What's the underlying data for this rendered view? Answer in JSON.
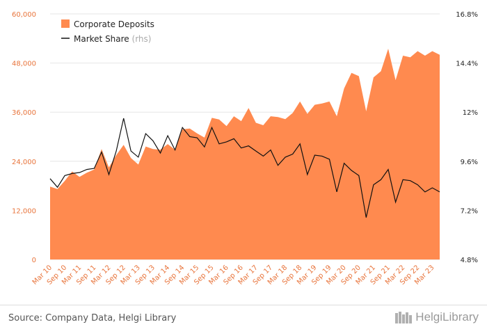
{
  "chart_data": {
    "type": "area+line",
    "categories": [
      "Mar 10",
      "",
      "Sep 10",
      "",
      "Mar 11",
      "",
      "Sep 11",
      "",
      "Mar 12",
      "",
      "Sep 12",
      "",
      "Mar 13",
      "",
      "Sep 13",
      "",
      "Mar 14",
      "",
      "Sep 14",
      "",
      "Mar 15",
      "",
      "Sep 15",
      "",
      "Mar 16",
      "",
      "Sep 16",
      "",
      "Mar 17",
      "",
      "Sep 17",
      "",
      "Mar 18",
      "",
      "Sep 18",
      "",
      "Mar 19",
      "",
      "Sep 19",
      "",
      "Mar 20",
      "",
      "Sep 20",
      "",
      "Mar 21",
      "",
      "Sep 21",
      "",
      "Mar 22",
      "",
      "Sep 22",
      "",
      "Mar 23",
      ""
    ],
    "series": [
      {
        "name": "Corporate Deposits",
        "axis": "left",
        "values": [
          17800,
          17200,
          19200,
          21500,
          20200,
          21200,
          22000,
          27000,
          22500,
          25500,
          28000,
          24800,
          23200,
          27600,
          27000,
          26800,
          28200,
          26800,
          31800,
          32000,
          30800,
          29800,
          34600,
          34200,
          32600,
          35000,
          33800,
          37000,
          33400,
          32800,
          35000,
          34800,
          34300,
          35800,
          38600,
          35600,
          37800,
          38100,
          38600,
          35000,
          41800,
          45600,
          44800,
          36200,
          44500,
          46000,
          51500,
          43800,
          49800,
          49400,
          50900,
          49800,
          50900,
          50000
        ]
      },
      {
        "name": "Market Share",
        "axis": "right",
        "values": [
          8.75,
          8.33,
          8.9,
          9.0,
          9.05,
          9.2,
          9.25,
          10.05,
          8.95,
          10.1,
          11.7,
          10.1,
          9.8,
          10.95,
          10.6,
          10.0,
          10.85,
          10.15,
          11.25,
          10.8,
          10.75,
          10.3,
          11.25,
          10.45,
          10.55,
          10.7,
          10.25,
          10.35,
          10.1,
          9.85,
          10.15,
          9.4,
          9.8,
          9.95,
          10.45,
          8.95,
          9.9,
          9.85,
          9.7,
          8.1,
          9.5,
          9.15,
          8.9,
          6.85,
          8.45,
          8.7,
          9.2,
          7.6,
          8.7,
          8.65,
          8.45,
          8.1,
          8.3,
          8.1
        ]
      }
    ],
    "yleft": {
      "ticks": [
        "0",
        "12,000",
        "24,000",
        "36,000",
        "48,000",
        "60,000"
      ],
      "range": [
        0,
        60000
      ]
    },
    "yright": {
      "ticks": [
        "4.8%",
        "7.2%",
        "9.6%",
        "12%",
        "14.4%",
        "16.8%"
      ],
      "range": [
        4.8,
        16.8
      ]
    },
    "legend": {
      "area_label": "Corporate Deposits",
      "line_label": "Market Share",
      "line_suffix": "(rhs)",
      "position": "top-left"
    },
    "colors": {
      "area": "#ff8a4f",
      "line": "#111111",
      "grid": "#e6e6e6",
      "left_axis_text": "#e8743b"
    }
  },
  "footer": {
    "source": "Source: Company Data, Helgi Library",
    "brand": "HelgiLibrary"
  }
}
